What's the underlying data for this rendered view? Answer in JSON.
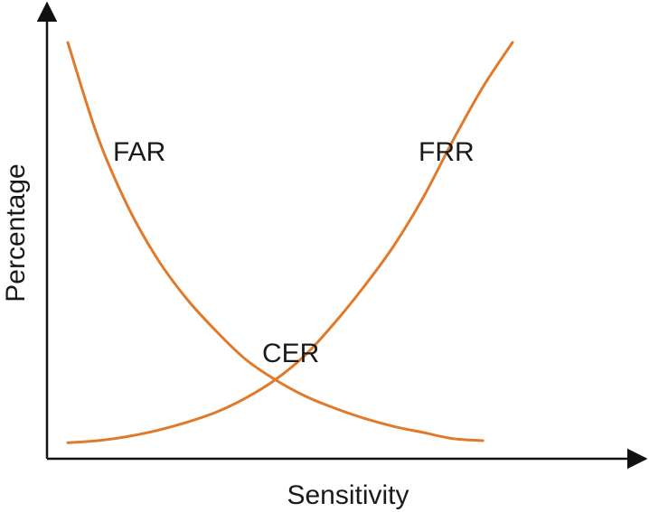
{
  "chart_data": {
    "type": "line",
    "xlabel": "Sensitivity",
    "ylabel": "Percentage",
    "xlim": [
      0,
      1
    ],
    "ylim": [
      0,
      1
    ],
    "grid": false,
    "ticks": false,
    "colors": {
      "curve": "#e07a2a",
      "axis": "#111111"
    },
    "series": [
      {
        "name": "FAR",
        "x": [
          0.0,
          0.05,
          0.1,
          0.15,
          0.2,
          0.25,
          0.3,
          0.35,
          0.4,
          0.45,
          0.5,
          0.55,
          0.6,
          0.65,
          0.7
        ],
        "y": [
          1.0,
          0.77,
          0.6,
          0.47,
          0.37,
          0.29,
          0.22,
          0.17,
          0.13,
          0.1,
          0.075,
          0.055,
          0.04,
          0.025,
          0.02
        ]
      },
      {
        "name": "FRR",
        "x": [
          0.0,
          0.05,
          0.1,
          0.15,
          0.2,
          0.25,
          0.3,
          0.35,
          0.4,
          0.45,
          0.5,
          0.55,
          0.6,
          0.65,
          0.7,
          0.75
        ],
        "y": [
          0.015,
          0.02,
          0.03,
          0.045,
          0.065,
          0.09,
          0.125,
          0.17,
          0.23,
          0.31,
          0.4,
          0.5,
          0.62,
          0.76,
          0.89,
          1.0
        ]
      }
    ],
    "annotations": [
      {
        "id": "far",
        "text": "FAR"
      },
      {
        "id": "frr",
        "text": "FRR"
      },
      {
        "id": "cer",
        "text": "CER"
      }
    ]
  }
}
